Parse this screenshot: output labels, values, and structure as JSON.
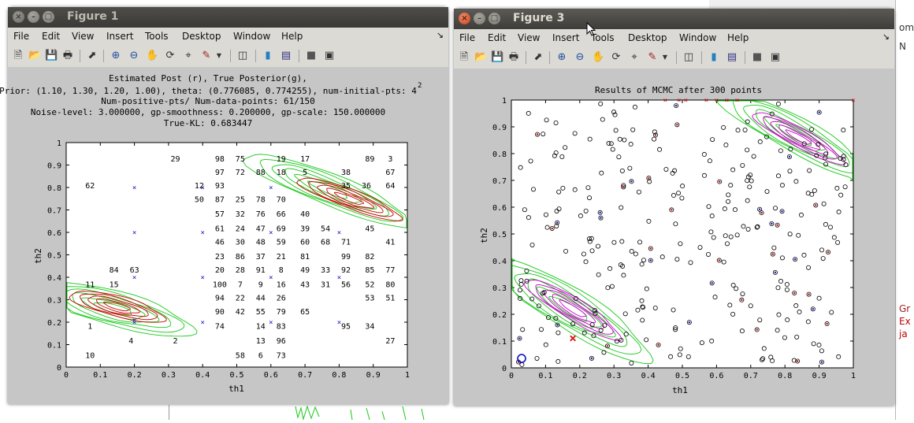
{
  "figure1": {
    "window_title": "Figure 1",
    "menu": [
      "File",
      "Edit",
      "View",
      "Insert",
      "Tools",
      "Desktop",
      "Window",
      "Help"
    ],
    "dock_glyph": "↘",
    "toolbar_icons": [
      "new-figure-icon",
      "open-file-icon",
      "save-icon",
      "print-icon",
      "pointer-icon",
      "zoom-in-icon",
      "zoom-out-icon",
      "pan-icon",
      "rotate-3d-icon",
      "data-cursor-icon",
      "brush-icon",
      "brush-menu-icon",
      "link-plot-icon",
      "colorbar-icon",
      "legend-icon",
      "hide-plot-tools-icon",
      "show-plot-tools-icon"
    ],
    "plot_title_lines": [
      "Estimated Post (r), True Posterior(g),",
      "Prior: (1.10, 1.30, 1.20, 1.00), theta: (0.776085, 0.774255), num-initial-pts: 4",
      "Num-positive-pts/ Num-data-points: 61/150",
      "Noise-level: 3.000000, gp-smoothness: 0.200000, gp-scale: 150.000000",
      "True-KL: 0.683447"
    ],
    "title_superscript": "2",
    "xlabel": "th1",
    "ylabel": "th2",
    "xticks": [
      "0",
      "0.1",
      "0.2",
      "0.3",
      "0.4",
      "0.5",
      "0.6",
      "0.7",
      "0.8",
      "0.9",
      "1"
    ],
    "yticks": [
      "0",
      "0.1",
      "0.2",
      "0.3",
      "0.4",
      "0.5",
      "0.6",
      "0.7",
      "0.8",
      "0.9",
      "1"
    ],
    "number_labels": [
      {
        "t": "29",
        "x": 0.32,
        "y": 0.93
      },
      {
        "t": "98",
        "x": 0.45,
        "y": 0.93
      },
      {
        "t": "75",
        "x": 0.51,
        "y": 0.93
      },
      {
        "t": "19",
        "x": 0.63,
        "y": 0.93
      },
      {
        "t": "17",
        "x": 0.7,
        "y": 0.93
      },
      {
        "t": "89",
        "x": 0.89,
        "y": 0.93
      },
      {
        "t": "3",
        "x": 0.95,
        "y": 0.93
      },
      {
        "t": "97",
        "x": 0.45,
        "y": 0.87
      },
      {
        "t": "72",
        "x": 0.51,
        "y": 0.87
      },
      {
        "t": "88",
        "x": 0.57,
        "y": 0.87
      },
      {
        "t": "18",
        "x": 0.63,
        "y": 0.87
      },
      {
        "t": "5",
        "x": 0.7,
        "y": 0.87
      },
      {
        "t": "38",
        "x": 0.82,
        "y": 0.87
      },
      {
        "t": "67",
        "x": 0.95,
        "y": 0.87
      },
      {
        "t": "62",
        "x": 0.07,
        "y": 0.81
      },
      {
        "t": "12",
        "x": 0.39,
        "y": 0.81
      },
      {
        "t": "93",
        "x": 0.45,
        "y": 0.81
      },
      {
        "t": "35",
        "x": 0.82,
        "y": 0.81
      },
      {
        "t": "36",
        "x": 0.88,
        "y": 0.81
      },
      {
        "t": "64",
        "x": 0.95,
        "y": 0.81
      },
      {
        "t": "50",
        "x": 0.39,
        "y": 0.75
      },
      {
        "t": "87",
        "x": 0.45,
        "y": 0.75
      },
      {
        "t": "25",
        "x": 0.51,
        "y": 0.75
      },
      {
        "t": "78",
        "x": 0.57,
        "y": 0.75
      },
      {
        "t": "70",
        "x": 0.63,
        "y": 0.75
      },
      {
        "t": "57",
        "x": 0.45,
        "y": 0.685
      },
      {
        "t": "32",
        "x": 0.51,
        "y": 0.685
      },
      {
        "t": "76",
        "x": 0.57,
        "y": 0.685
      },
      {
        "t": "66",
        "x": 0.63,
        "y": 0.685
      },
      {
        "t": "40",
        "x": 0.7,
        "y": 0.685
      },
      {
        "t": "61",
        "x": 0.45,
        "y": 0.62
      },
      {
        "t": "24",
        "x": 0.51,
        "y": 0.62
      },
      {
        "t": "47",
        "x": 0.57,
        "y": 0.62
      },
      {
        "t": "69",
        "x": 0.63,
        "y": 0.62
      },
      {
        "t": "39",
        "x": 0.7,
        "y": 0.62
      },
      {
        "t": "54",
        "x": 0.76,
        "y": 0.62
      },
      {
        "t": "45",
        "x": 0.89,
        "y": 0.62
      },
      {
        "t": "46",
        "x": 0.45,
        "y": 0.56
      },
      {
        "t": "30",
        "x": 0.51,
        "y": 0.56
      },
      {
        "t": "48",
        "x": 0.57,
        "y": 0.56
      },
      {
        "t": "59",
        "x": 0.63,
        "y": 0.56
      },
      {
        "t": "60",
        "x": 0.7,
        "y": 0.56
      },
      {
        "t": "68",
        "x": 0.76,
        "y": 0.56
      },
      {
        "t": "71",
        "x": 0.82,
        "y": 0.56
      },
      {
        "t": "41",
        "x": 0.95,
        "y": 0.56
      },
      {
        "t": "84",
        "x": 0.14,
        "y": 0.435
      },
      {
        "t": "63",
        "x": 0.2,
        "y": 0.435
      },
      {
        "t": "23",
        "x": 0.45,
        "y": 0.495
      },
      {
        "t": "86",
        "x": 0.51,
        "y": 0.495
      },
      {
        "t": "37",
        "x": 0.57,
        "y": 0.495
      },
      {
        "t": "21",
        "x": 0.63,
        "y": 0.495
      },
      {
        "t": "81",
        "x": 0.7,
        "y": 0.495
      },
      {
        "t": "99",
        "x": 0.82,
        "y": 0.495
      },
      {
        "t": "82",
        "x": 0.89,
        "y": 0.495
      },
      {
        "t": "20",
        "x": 0.45,
        "y": 0.435
      },
      {
        "t": "28",
        "x": 0.51,
        "y": 0.435
      },
      {
        "t": "91",
        "x": 0.57,
        "y": 0.435
      },
      {
        "t": "8",
        "x": 0.63,
        "y": 0.435
      },
      {
        "t": "49",
        "x": 0.7,
        "y": 0.435
      },
      {
        "t": "33",
        "x": 0.76,
        "y": 0.435
      },
      {
        "t": "92",
        "x": 0.82,
        "y": 0.435
      },
      {
        "t": "85",
        "x": 0.89,
        "y": 0.435
      },
      {
        "t": "77",
        "x": 0.95,
        "y": 0.435
      },
      {
        "t": "11",
        "x": 0.07,
        "y": 0.37
      },
      {
        "t": "15",
        "x": 0.14,
        "y": 0.37
      },
      {
        "t": "100",
        "x": 0.45,
        "y": 0.37
      },
      {
        "t": "7",
        "x": 0.51,
        "y": 0.37
      },
      {
        "t": "9",
        "x": 0.57,
        "y": 0.37
      },
      {
        "t": "16",
        "x": 0.63,
        "y": 0.37
      },
      {
        "t": "43",
        "x": 0.7,
        "y": 0.37
      },
      {
        "t": "31",
        "x": 0.76,
        "y": 0.37
      },
      {
        "t": "56",
        "x": 0.82,
        "y": 0.37
      },
      {
        "t": "52",
        "x": 0.89,
        "y": 0.37
      },
      {
        "t": "80",
        "x": 0.95,
        "y": 0.37
      },
      {
        "t": "94",
        "x": 0.45,
        "y": 0.31
      },
      {
        "t": "22",
        "x": 0.51,
        "y": 0.31
      },
      {
        "t": "44",
        "x": 0.57,
        "y": 0.31
      },
      {
        "t": "26",
        "x": 0.63,
        "y": 0.31
      },
      {
        "t": "53",
        "x": 0.89,
        "y": 0.31
      },
      {
        "t": "51",
        "x": 0.95,
        "y": 0.31
      },
      {
        "t": "90",
        "x": 0.45,
        "y": 0.25
      },
      {
        "t": "42",
        "x": 0.51,
        "y": 0.25
      },
      {
        "t": "55",
        "x": 0.57,
        "y": 0.25
      },
      {
        "t": "79",
        "x": 0.63,
        "y": 0.25
      },
      {
        "t": "65",
        "x": 0.7,
        "y": 0.25
      },
      {
        "t": "1",
        "x": 0.07,
        "y": 0.185
      },
      {
        "t": "74",
        "x": 0.45,
        "y": 0.185
      },
      {
        "t": "14",
        "x": 0.57,
        "y": 0.185
      },
      {
        "t": "83",
        "x": 0.63,
        "y": 0.185
      },
      {
        "t": "95",
        "x": 0.82,
        "y": 0.185
      },
      {
        "t": "34",
        "x": 0.89,
        "y": 0.185
      },
      {
        "t": "4",
        "x": 0.19,
        "y": 0.12
      },
      {
        "t": "2",
        "x": 0.32,
        "y": 0.12
      },
      {
        "t": "13",
        "x": 0.57,
        "y": 0.12
      },
      {
        "t": "96",
        "x": 0.63,
        "y": 0.12
      },
      {
        "t": "27",
        "x": 0.95,
        "y": 0.12
      },
      {
        "t": "10",
        "x": 0.07,
        "y": 0.055
      },
      {
        "t": "58",
        "x": 0.51,
        "y": 0.055
      },
      {
        "t": "6",
        "x": 0.57,
        "y": 0.055
      },
      {
        "t": "73",
        "x": 0.63,
        "y": 0.055
      }
    ],
    "x_markers": [
      [
        0.2,
        0.8
      ],
      [
        0.2,
        0.6
      ],
      [
        0.2,
        0.4
      ],
      [
        0.2,
        0.2
      ],
      [
        0.4,
        0.8
      ],
      [
        0.4,
        0.6
      ],
      [
        0.4,
        0.4
      ],
      [
        0.4,
        0.2
      ],
      [
        0.6,
        0.8
      ],
      [
        0.6,
        0.6
      ],
      [
        0.6,
        0.4
      ],
      [
        0.6,
        0.2
      ],
      [
        0.8,
        0.6
      ],
      [
        0.8,
        0.4
      ],
      [
        0.8,
        0.2
      ],
      [
        0.2,
        0.21
      ]
    ]
  },
  "figure3": {
    "window_title": "Figure 3",
    "menu": [
      "File",
      "Edit",
      "View",
      "Insert",
      "Tools",
      "Desktop",
      "Window",
      "Help"
    ],
    "dock_glyph": "↘",
    "plot_title": "Results of MCMC after 300 points",
    "xlabel": "th1",
    "ylabel": "th2",
    "xticks": [
      "0",
      "0.1",
      "0.2",
      "0.3",
      "0.4",
      "0.5",
      "0.6",
      "0.7",
      "0.8",
      "0.9",
      "1"
    ],
    "yticks": [
      "0",
      "0.1",
      "0.2",
      "0.3",
      "0.4",
      "0.5",
      "0.6",
      "0.7",
      "0.8",
      "0.9",
      "1"
    ]
  },
  "right_panel": {
    "labels": [
      "om",
      "N",
      "Gr",
      "Ex",
      "ja"
    ]
  },
  "colors": {
    "green": "#18c818",
    "red": "#c80000",
    "magenta": "#c800c8",
    "blue": "#1010c8",
    "black": "#000000"
  }
}
